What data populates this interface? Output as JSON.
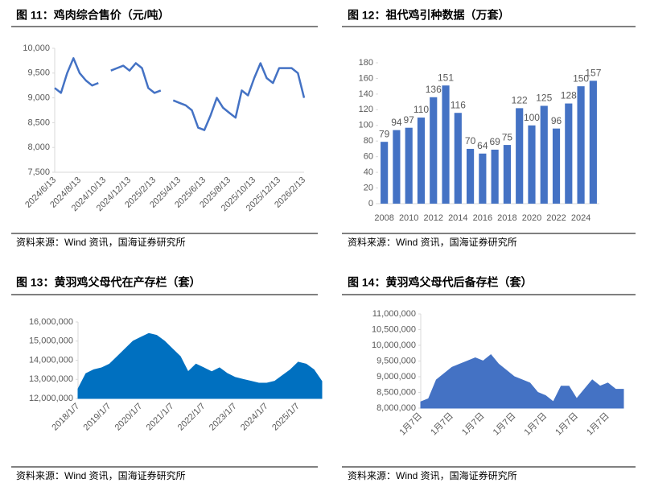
{
  "chart_data": [
    {
      "type": "line",
      "title": "图 11：鸡肉综合售价（元/吨）",
      "source": "资料来源：Wind 资讯，国海证券研究所",
      "categories": [
        "2024/6/13",
        null,
        null,
        null,
        "2024/8/13",
        null,
        null,
        null,
        "2024/10/13",
        null,
        null,
        null,
        "2024/12/13",
        null,
        null,
        null,
        "2025/2/13",
        null,
        null,
        null,
        "2025/4/13",
        null,
        null,
        null,
        "2025/6/13",
        null,
        null,
        null,
        "2025/8/13",
        null,
        null,
        null,
        "2025/10/13",
        null,
        null,
        null,
        "2025/12/13",
        null,
        null,
        null,
        "2026/2/13"
      ],
      "values": [
        9200,
        9100,
        9500,
        9800,
        9500,
        9350,
        9250,
        9300,
        null,
        9550,
        9600,
        9650,
        9550,
        9700,
        9600,
        9200,
        9100,
        9150,
        null,
        8950,
        8900,
        8850,
        8750,
        8400,
        8350,
        8650,
        9000,
        8800,
        8700,
        8600,
        9150,
        9050,
        9400,
        9700,
        9400,
        9300,
        9600,
        9600,
        9600,
        9500,
        9000
      ],
      "color": "#4472c4",
      "ylim": [
        7500,
        10000
      ],
      "yticks": [
        {
          "value": 7500,
          "label": "7,500"
        },
        {
          "value": 8000,
          "label": "8,000"
        },
        {
          "value": 8500,
          "label": "8,500"
        },
        {
          "value": 9000,
          "label": "9,000"
        },
        {
          "value": 9500,
          "label": "9,500"
        },
        {
          "value": 10000,
          "label": "10,000"
        }
      ],
      "grid": false
    },
    {
      "type": "bar",
      "title": "图 12：祖代鸡引种数据（万套）",
      "source": "资料来源：Wind 资讯，国海证券研究所",
      "categories": [
        "2008",
        null,
        "2010",
        null,
        "2012",
        null,
        "2014",
        null,
        "2016",
        null,
        "2018",
        null,
        "2020",
        null,
        "2022",
        null,
        "2024",
        null
      ],
      "values": [
        79,
        94,
        97,
        110,
        136,
        151,
        116,
        70,
        64,
        69,
        75,
        122,
        100,
        125,
        96,
        128,
        150,
        157
      ],
      "color": "#4472c4",
      "ylim": [
        0,
        180
      ],
      "yticks": [
        0,
        20,
        40,
        60,
        80,
        100,
        120,
        140,
        160,
        180
      ],
      "grid": false
    },
    {
      "type": "area",
      "title": "图 13：黄羽鸡父母代在产存栏（套）",
      "source": "资料来源：Wind 资讯，国海证券研究所",
      "categories": [
        "2018/1/7",
        null,
        null,
        null,
        "2019/1/7",
        null,
        null,
        null,
        "2020/1/7",
        null,
        null,
        null,
        "2021/1/7",
        null,
        null,
        null,
        "2022/1/7",
        null,
        null,
        null,
        "2023/1/7",
        null,
        null,
        null,
        "2024/1/7",
        null,
        null,
        null,
        "2025/1/7",
        null,
        null,
        null
      ],
      "values": [
        12500000,
        13300000,
        13500000,
        13600000,
        13800000,
        14200000,
        14600000,
        15000000,
        15200000,
        15400000,
        15300000,
        15000000,
        14600000,
        14200000,
        13400000,
        13800000,
        13600000,
        13400000,
        13600000,
        13300000,
        13100000,
        13000000,
        12900000,
        12800000,
        12800000,
        12900000,
        13200000,
        13500000,
        13900000,
        13800000,
        13500000,
        12900000
      ],
      "color": "#0070c0",
      "ylim": [
        12000000,
        16000000
      ],
      "yticks": [
        {
          "value": 12000000,
          "label": "12,000,000"
        },
        {
          "value": 13000000,
          "label": "13,000,000"
        },
        {
          "value": 14000000,
          "label": "14,000,000"
        },
        {
          "value": 15000000,
          "label": "15,000,000"
        },
        {
          "value": 16000000,
          "label": "16,000,000"
        }
      ],
      "grid": false
    },
    {
      "type": "area",
      "title": "图 14：黄羽鸡父母代后备存栏（套）",
      "source": "资料来源：Wind 资讯，国海证券研究所",
      "categories": [
        "1月7日",
        null,
        null,
        null,
        "1月7日",
        null,
        null,
        null,
        "1月7日",
        null,
        null,
        null,
        "1月7日",
        null,
        null,
        null,
        "1月7日",
        null,
        null,
        null,
        "1月7日",
        null,
        null,
        null,
        "1月7日",
        null,
        null
      ],
      "values": [
        8200000,
        8300000,
        8900000,
        9100000,
        9300000,
        9400000,
        9500000,
        9600000,
        9500000,
        9700000,
        9400000,
        9200000,
        9000000,
        8900000,
        8800000,
        8500000,
        8400000,
        8200000,
        8700000,
        8700000,
        8300000,
        8600000,
        8900000,
        8700000,
        8800000,
        8600000,
        8600000
      ],
      "color": "#4472c4",
      "ylim": [
        8000000,
        11000000
      ],
      "yticks": [
        {
          "value": 8000000,
          "label": "8,000,000"
        },
        {
          "value": 8500000,
          "label": "8,500,000"
        },
        {
          "value": 9000000,
          "label": "9,000,000"
        },
        {
          "value": 9500000,
          "label": "9,500,000"
        },
        {
          "value": 10000000,
          "label": "10,000,000"
        },
        {
          "value": 10500000,
          "label": "10,500,000"
        },
        {
          "value": 11000000,
          "label": "11,000,000"
        }
      ],
      "grid": false
    }
  ]
}
